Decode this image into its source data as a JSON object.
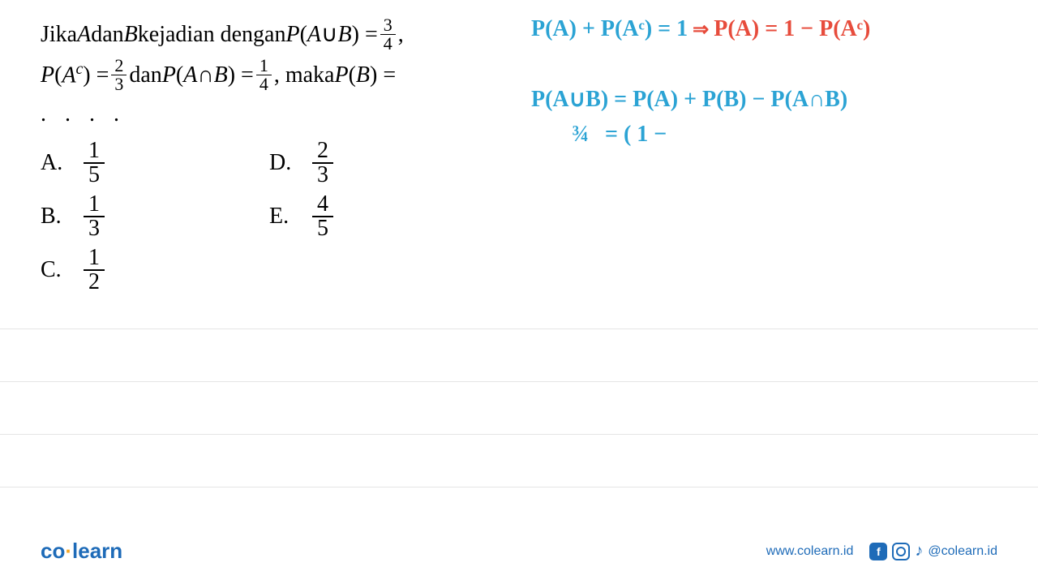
{
  "question": {
    "line1_part1": "Jika ",
    "line1_A": "A",
    "line1_part2": " dan ",
    "line1_B": "B",
    "line1_part3": " kejadian dengan ",
    "line1_P": "P",
    "line1_paren1": "(",
    "line1_A2": "A",
    "line1_union": " ∪ ",
    "line1_B2": "B",
    "line1_paren2": ") = ",
    "frac1_num": "3",
    "frac1_den": "4",
    "line1_comma": ",",
    "line2_P1": "P",
    "line2_paren1": "(",
    "line2_Ac": "A",
    "line2_c": "c",
    "line2_paren2": ") = ",
    "frac2_num": "2",
    "frac2_den": "3",
    "line2_and": " dan ",
    "line2_P2": "P",
    "line2_paren3": "(",
    "line2_A": "A",
    "line2_inter": " ∩ ",
    "line2_B": "B",
    "line2_paren4": ") = ",
    "frac3_num": "1",
    "frac3_den": "4",
    "line2_maka": ", maka ",
    "line2_P3": "P",
    "line2_paren5": "(",
    "line2_B2": "B",
    "line2_paren6": ") =",
    "dots": ". . . ."
  },
  "options": {
    "A": {
      "letter": "A.",
      "num": "1",
      "den": "5"
    },
    "B": {
      "letter": "B.",
      "num": "1",
      "den": "3"
    },
    "C": {
      "letter": "C.",
      "num": "1",
      "den": "2"
    },
    "D": {
      "letter": "D.",
      "num": "2",
      "den": "3"
    },
    "E": {
      "letter": "E.",
      "num": "4",
      "den": "5"
    }
  },
  "handwriting": {
    "hw1_blue1": "P(A) + P(Aᶜ) = 1 ",
    "hw1_red_arrow": "⇒",
    "hw1_red": " P(A) = 1 − P(Aᶜ)",
    "hw2": "P(A∪B) = P(A) + P(B) − P(A∩B)",
    "hw3_left": "¾",
    "hw3_right": "= ( 1 −"
  },
  "footer": {
    "logo_co": "co",
    "logo_dot": "·",
    "logo_learn": "learn",
    "url": "www.colearn.id",
    "handle": "@colearn.id",
    "fb": "f"
  },
  "colors": {
    "text": "#000000",
    "blue_hw": "#2ba3d4",
    "red_hw": "#e74c3c",
    "brand_blue": "#1e6bb8",
    "brand_orange": "#f5a623",
    "line_gray": "#e5e5e5",
    "background": "#ffffff"
  }
}
